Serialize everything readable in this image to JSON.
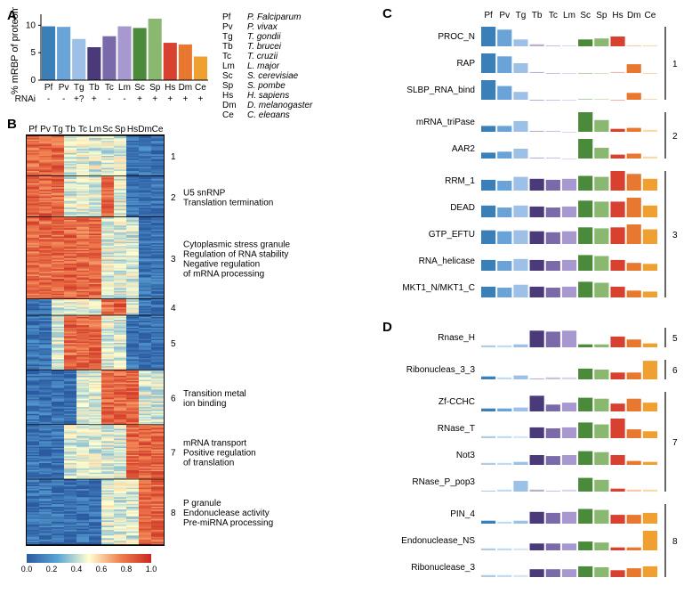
{
  "species": {
    "codes": [
      "Pf",
      "Pv",
      "Tg",
      "Tb",
      "Tc",
      "Lm",
      "Sc",
      "Sp",
      "Hs",
      "Dm",
      "Ce"
    ],
    "names": [
      "P. Falciparum",
      "P. vivax",
      "T. gondii",
      "T. brucei",
      "T. cruzii",
      "L. major",
      "S. cerevisiae",
      "S. pombe",
      "H. sapiens",
      "D. melanogaster",
      "C. elegans"
    ],
    "colors": [
      "#3a7fb8",
      "#6aa3d8",
      "#9cc0e6",
      "#4a3a7a",
      "#7a6aaa",
      "#a898d0",
      "#4a8a3a",
      "#8ab870",
      "#d84030",
      "#e87830",
      "#f0a030"
    ]
  },
  "panelA": {
    "label": "A",
    "ylabel": "% mRBP of proteome",
    "values": [
      9.8,
      9.7,
      7.5,
      6.0,
      8.0,
      9.8,
      9.5,
      11.2,
      6.8,
      6.5,
      4.3
    ],
    "rnai": [
      "-",
      "-",
      "+?",
      "+",
      "-",
      "-",
      "+",
      "+",
      "+",
      "+",
      "+"
    ],
    "rnai_label": "RNAi",
    "yticks": [
      0,
      5,
      10
    ],
    "ylim": [
      0,
      12
    ]
  },
  "panelB": {
    "label": "B",
    "heatmap_colormap": {
      "stops": [
        [
          0,
          "#2c5aa0"
        ],
        [
          0.25,
          "#5aa5d6"
        ],
        [
          0.5,
          "#ffffd0"
        ],
        [
          0.75,
          "#f08050"
        ],
        [
          1,
          "#c82820"
        ]
      ],
      "ticks": [
        0.0,
        0.2,
        0.4,
        0.6,
        0.8,
        1.0
      ]
    },
    "clusters": [
      {
        "num": 1,
        "rows": 30,
        "annots": [],
        "pattern": {
          "hi": [
            0,
            1,
            2
          ],
          "lo": [
            8,
            9,
            10
          ]
        }
      },
      {
        "num": 2,
        "rows": 30,
        "annots": [
          "U5 snRNP",
          "Translation termination"
        ],
        "pattern": {
          "hi": [
            0,
            1,
            2,
            6
          ],
          "lo": [
            8,
            9,
            10
          ]
        }
      },
      {
        "num": 3,
        "rows": 60,
        "annots": [
          "Cytoplasmic stress granule",
          "Regulation of RNA stability",
          "Negative regulation",
          "  of mRNA processing"
        ],
        "pattern": {
          "hi": [
            0,
            1,
            2,
            3,
            4,
            5
          ],
          "lo": [
            9,
            10
          ]
        }
      },
      {
        "num": 4,
        "rows": 12,
        "annots": [],
        "pattern": {
          "hi": [
            6,
            7
          ],
          "lo": [
            0,
            1,
            9,
            10
          ]
        }
      },
      {
        "num": 5,
        "rows": 40,
        "annots": [],
        "pattern": {
          "hi": [
            3,
            4,
            5
          ],
          "lo": [
            0,
            1,
            8,
            9,
            10
          ]
        }
      },
      {
        "num": 6,
        "rows": 40,
        "annots": [
          "Transition metal",
          "  ion binding"
        ],
        "pattern": {
          "hi": [
            6,
            7,
            8
          ],
          "lo": [
            0,
            1,
            2,
            3
          ]
        }
      },
      {
        "num": 7,
        "rows": 40,
        "annots": [
          "mRNA transport",
          "Positive regulation",
          "  of translation"
        ],
        "pattern": {
          "hi": [
            8,
            9,
            10
          ],
          "lo": [
            0,
            1,
            2
          ]
        }
      },
      {
        "num": 8,
        "rows": 48,
        "annots": [
          "P granule",
          "Endonuclease activity",
          "Pre-miRNA processing"
        ],
        "pattern": {
          "hi": [
            9,
            10
          ],
          "lo": [
            0,
            1,
            2,
            3,
            4,
            5
          ]
        }
      }
    ]
  },
  "panelC": {
    "label": "C",
    "groups": [
      {
        "cluster": 1,
        "domains": [
          {
            "name": "PROC_N",
            "vals": [
              1.0,
              0.85,
              0.35,
              0.1,
              0.05,
              0.05,
              0.35,
              0.4,
              0.5,
              0.05,
              0.05
            ]
          },
          {
            "name": "RAP",
            "vals": [
              1.0,
              0.85,
              0.5,
              0.05,
              0.0,
              0.0,
              0.0,
              0.0,
              0.05,
              0.45,
              0.0
            ]
          },
          {
            "name": "SLBP_RNA_bind",
            "vals": [
              1.0,
              0.7,
              0.4,
              0.0,
              0.0,
              0.0,
              0.05,
              0.05,
              0.0,
              0.35,
              0.05
            ]
          }
        ]
      },
      {
        "cluster": 2,
        "domains": [
          {
            "name": "mRNA_triPase",
            "vals": [
              0.3,
              0.3,
              0.55,
              0.05,
              0.05,
              0.0,
              1.0,
              0.6,
              0.15,
              0.2,
              0.1
            ]
          },
          {
            "name": "AAR2",
            "vals": [
              0.3,
              0.35,
              0.5,
              0.05,
              0.05,
              0.0,
              1.0,
              0.55,
              0.2,
              0.25,
              0.1
            ]
          }
        ]
      },
      {
        "cluster": 3,
        "domains": [
          {
            "name": "RRM_1",
            "vals": [
              0.55,
              0.5,
              0.7,
              0.6,
              0.55,
              0.6,
              0.75,
              0.7,
              1.0,
              0.85,
              0.6
            ]
          },
          {
            "name": "DEAD",
            "vals": [
              0.6,
              0.5,
              0.6,
              0.55,
              0.5,
              0.55,
              0.85,
              0.8,
              0.8,
              1.0,
              0.6
            ]
          },
          {
            "name": "GTP_EFTU",
            "vals": [
              0.7,
              0.65,
              0.7,
              0.65,
              0.6,
              0.65,
              0.85,
              0.8,
              0.85,
              1.0,
              0.75
            ]
          },
          {
            "name": "RNA_helicase",
            "vals": [
              0.55,
              0.5,
              0.6,
              0.55,
              0.5,
              0.55,
              0.8,
              0.75,
              0.55,
              0.4,
              0.35
            ]
          },
          {
            "name": "MKT1_N/MKT1_C",
            "vals": [
              0.55,
              0.5,
              0.65,
              0.55,
              0.5,
              0.55,
              0.8,
              0.75,
              0.55,
              0.35,
              0.3
            ]
          }
        ]
      }
    ]
  },
  "panelD": {
    "label": "D",
    "groups": [
      {
        "cluster": 5,
        "domains": [
          {
            "name": "Rnase_H",
            "vals": [
              0.1,
              0.1,
              0.15,
              0.85,
              0.8,
              0.85,
              0.15,
              0.15,
              0.55,
              0.4,
              0.2
            ]
          }
        ]
      },
      {
        "cluster": 6,
        "domains": [
          {
            "name": "Ribonucleas_3_3",
            "vals": [
              0.15,
              0.1,
              0.2,
              0.05,
              0.1,
              0.1,
              0.55,
              0.5,
              0.35,
              0.35,
              0.95
            ]
          }
        ]
      },
      {
        "cluster": 7,
        "domains": [
          {
            "name": "Zf-CCHC",
            "vals": [
              0.15,
              0.15,
              0.2,
              0.8,
              0.35,
              0.45,
              0.7,
              0.65,
              0.4,
              0.65,
              0.45
            ]
          },
          {
            "name": "RNase_T",
            "vals": [
              0.1,
              0.1,
              0.1,
              0.55,
              0.5,
              0.55,
              0.8,
              0.7,
              1.0,
              0.45,
              0.35
            ]
          },
          {
            "name": "Not3",
            "vals": [
              0.1,
              0.1,
              0.15,
              0.5,
              0.45,
              0.5,
              0.7,
              0.65,
              0.5,
              0.2,
              0.15
            ]
          },
          {
            "name": "RNase_P_pop3",
            "vals": [
              0.05,
              0.1,
              0.55,
              0.1,
              0.05,
              0.1,
              0.7,
              0.6,
              0.15,
              0.1,
              0.1
            ]
          }
        ]
      },
      {
        "cluster": 8,
        "domains": [
          {
            "name": "PIN_4",
            "vals": [
              0.15,
              0.1,
              0.15,
              0.6,
              0.55,
              0.6,
              0.75,
              0.7,
              0.45,
              0.45,
              0.55
            ]
          },
          {
            "name": "Endonuclease_NS",
            "vals": [
              0.1,
              0.1,
              0.1,
              0.35,
              0.35,
              0.35,
              0.45,
              0.4,
              0.15,
              0.15,
              1.0
            ]
          },
          {
            "name": "Ribonuclease_3",
            "vals": [
              0.1,
              0.1,
              0.1,
              0.4,
              0.4,
              0.4,
              0.55,
              0.5,
              0.35,
              0.45,
              0.55
            ]
          }
        ]
      }
    ]
  }
}
